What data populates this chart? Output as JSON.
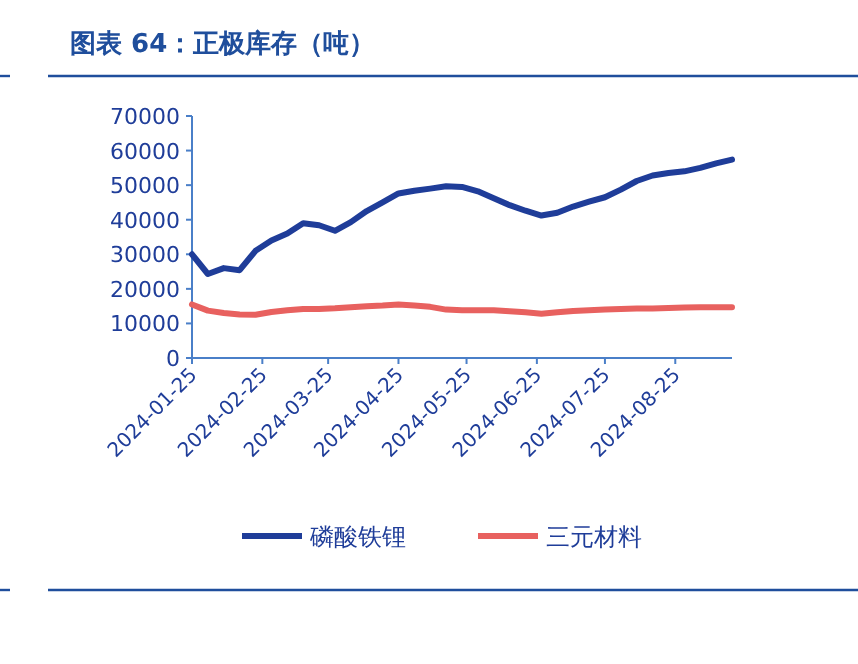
{
  "chart_data": {
    "type": "line",
    "title": "图表 64：正极库存（吨）",
    "x": [
      "2024-01-25",
      "2024-02-01",
      "2024-02-08",
      "2024-02-15",
      "2024-02-22",
      "2024-02-29",
      "2024-03-07",
      "2024-03-14",
      "2024-03-21",
      "2024-03-28",
      "2024-04-04",
      "2024-04-11",
      "2024-04-18",
      "2024-04-25",
      "2024-05-02",
      "2024-05-09",
      "2024-05-16",
      "2024-05-23",
      "2024-05-30",
      "2024-06-06",
      "2024-06-13",
      "2024-06-20",
      "2024-06-27",
      "2024-07-04",
      "2024-07-11",
      "2024-07-18",
      "2024-07-25",
      "2024-08-01",
      "2024-08-08",
      "2024-08-15",
      "2024-08-22",
      "2024-08-29",
      "2024-09-05",
      "2024-09-12",
      "2024-09-19"
    ],
    "series": [
      {
        "name": "磷酸铁锂",
        "color": "#1f3d99",
        "values": [
          30000,
          24300,
          26000,
          25400,
          31000,
          34000,
          36000,
          39000,
          38400,
          36800,
          39300,
          42500,
          45000,
          47600,
          48400,
          49000,
          49700,
          49500,
          48200,
          46200,
          44200,
          42600,
          41200,
          42000,
          43800,
          45200,
          46500,
          48700,
          51200,
          52800,
          53500,
          54000,
          55000,
          56300,
          57400
        ]
      },
      {
        "name": "三元材料",
        "color": "#e8615f",
        "values": [
          15500,
          13700,
          13000,
          12600,
          12500,
          13300,
          13800,
          14200,
          14200,
          14400,
          14700,
          15000,
          15200,
          15500,
          15200,
          14800,
          14000,
          13800,
          13800,
          13800,
          13500,
          13200,
          12800,
          13200,
          13600,
          13800,
          14000,
          14200,
          14300,
          14300,
          14500,
          14600,
          14700,
          14700,
          14700
        ]
      }
    ],
    "xlim": [
      "2024-01-25",
      "2024-09-19"
    ],
    "xticks": [
      "2024-01-25",
      "2024-02-25",
      "2024-03-25",
      "2024-04-25",
      "2024-05-25",
      "2024-06-25",
      "2024-07-25",
      "2024-08-25"
    ],
    "ylim": [
      0,
      70000
    ],
    "yticks": [
      0,
      10000,
      20000,
      30000,
      40000,
      50000,
      60000,
      70000
    ],
    "grid": false,
    "legend": "bottom",
    "marker": "none",
    "line_style": "solid"
  }
}
